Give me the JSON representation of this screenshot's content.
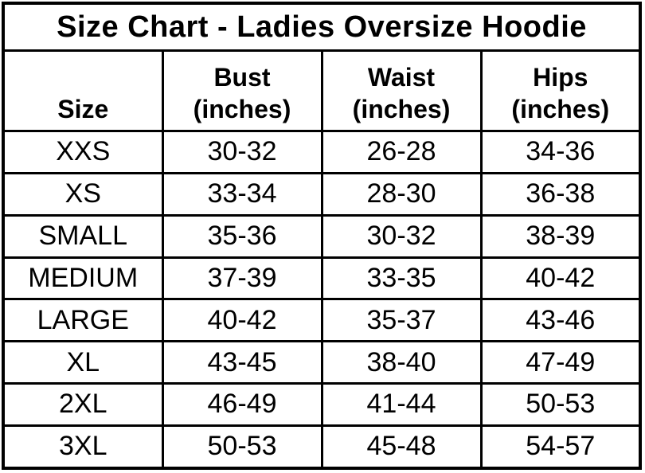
{
  "chart_data": {
    "type": "table",
    "title": "Size Chart - Ladies Oversize Hoodie",
    "columns": [
      {
        "label": "Size",
        "unit": ""
      },
      {
        "label": "Bust",
        "unit": "(inches)"
      },
      {
        "label": "Waist",
        "unit": "(inches)"
      },
      {
        "label": "Hips",
        "unit": "(inches)"
      }
    ],
    "rows": [
      {
        "size": "XXS",
        "bust": "30-32",
        "waist": "26-28",
        "hips": "34-36"
      },
      {
        "size": "XS",
        "bust": "33-34",
        "waist": "28-30",
        "hips": "36-38"
      },
      {
        "size": "SMALL",
        "bust": "35-36",
        "waist": "30-32",
        "hips": "38-39"
      },
      {
        "size": "MEDIUM",
        "bust": "37-39",
        "waist": "33-35",
        "hips": "40-42"
      },
      {
        "size": "LARGE",
        "bust": "40-42",
        "waist": "35-37",
        "hips": "43-46"
      },
      {
        "size": "XL",
        "bust": "43-45",
        "waist": "38-40",
        "hips": "47-49"
      },
      {
        "size": "2XL",
        "bust": "46-49",
        "waist": "41-44",
        "hips": "50-53"
      },
      {
        "size": "3XL",
        "bust": "50-53",
        "waist": "45-48",
        "hips": "54-57"
      }
    ]
  },
  "colors": {
    "border": "#000000",
    "text": "#000000",
    "background": "#ffffff"
  }
}
